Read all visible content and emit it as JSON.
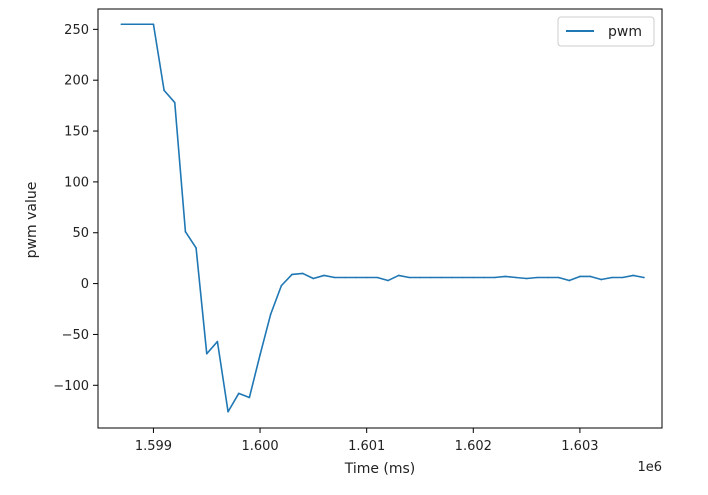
{
  "chart_data": {
    "type": "line",
    "xlabel": "Time (ms)",
    "ylabel": "pwm value",
    "x_offset_label": "1e6",
    "x_multiplier": 1000000,
    "xlim": [
      1.59848,
      1.60377
    ],
    "ylim": [
      -142,
      270
    ],
    "x_ticks": [
      1.599,
      1.6,
      1.601,
      1.602,
      1.603
    ],
    "x_tick_labels": [
      "1.599",
      "1.600",
      "1.601",
      "1.602",
      "1.603"
    ],
    "y_ticks": [
      250,
      200,
      150,
      100,
      50,
      0,
      -50,
      -100
    ],
    "y_tick_labels": [
      "250",
      "200",
      "150",
      "100",
      "50",
      "0",
      "−50",
      "−100"
    ],
    "legend_position": "upper-right",
    "grid": false,
    "series": [
      {
        "name": "pwm",
        "color": "#1f77b4",
        "x": [
          1.5987,
          1.5988,
          1.5989,
          1.599,
          1.5991,
          1.5992,
          1.5993,
          1.5994,
          1.5995,
          1.5996,
          1.5997,
          1.5998,
          1.5999,
          1.6,
          1.6001,
          1.6002,
          1.6003,
          1.6004,
          1.6005,
          1.6006,
          1.6007,
          1.6008,
          1.6009,
          1.601,
          1.6011,
          1.6012,
          1.6013,
          1.6014,
          1.6015,
          1.6016,
          1.6017,
          1.6018,
          1.6019,
          1.602,
          1.6021,
          1.6022,
          1.6023,
          1.6024,
          1.6025,
          1.6026,
          1.6027,
          1.6028,
          1.6029,
          1.603,
          1.6031,
          1.6032,
          1.6033,
          1.6034,
          1.6035,
          1.6036
        ],
        "y": [
          255,
          255,
          255,
          255,
          190,
          178,
          51,
          35,
          -69,
          -57,
          -126,
          -108,
          -112,
          -70,
          -30,
          -2,
          9,
          10,
          5,
          8,
          6,
          6,
          6,
          6,
          6,
          3,
          8,
          6,
          6,
          6,
          6,
          6,
          6,
          6,
          6,
          6,
          7,
          6,
          5,
          6,
          6,
          6,
          3,
          7,
          7,
          4,
          6,
          6,
          8,
          6
        ]
      }
    ]
  }
}
